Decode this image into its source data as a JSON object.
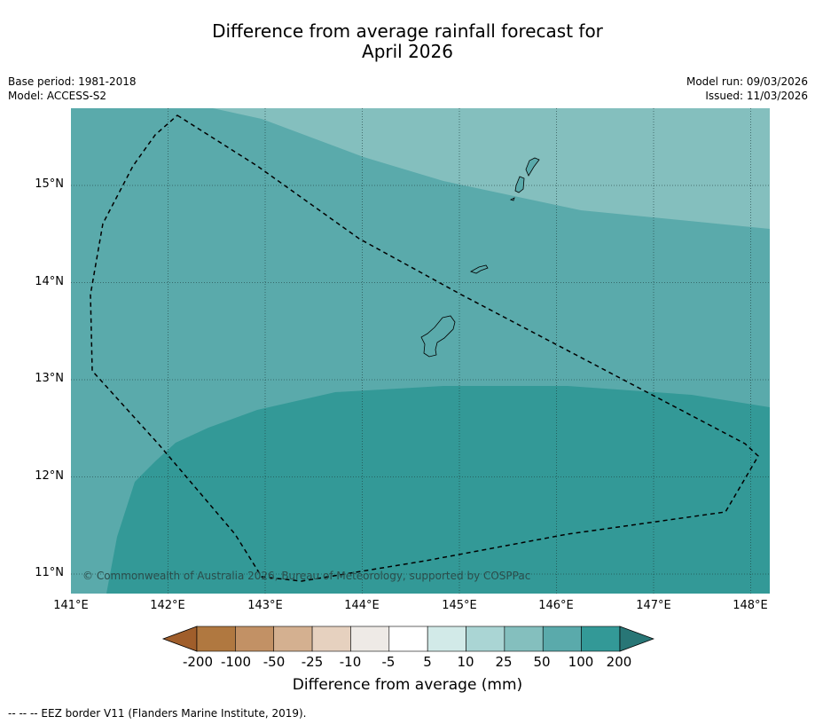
{
  "title": {
    "line1": "Difference from average rainfall forecast for",
    "line2": "April 2026"
  },
  "meta": {
    "base_period": "Base period: 1981-2018",
    "model": "Model: ACCESS-S2",
    "model_run": "Model run: 09/03/2026",
    "issued": "Issued: 11/03/2026"
  },
  "map": {
    "lat_labels": [
      "15°N",
      "14°N",
      "13°N",
      "12°N",
      "11°N"
    ],
    "lon_labels": [
      "141°E",
      "142°E",
      "143°E",
      "144°E",
      "145°E",
      "146°E",
      "147°E",
      "148°E"
    ],
    "copyright": "© Commonwealth of Australia 2026, Bureau of Meteorology, supported by COSPPac",
    "region_colors": {
      "band_25_50": "#84bfbe",
      "band_50_100": "#5aaaab",
      "band_100_200": "#339997"
    }
  },
  "colorbar": {
    "tick_labels": [
      "-200",
      "-100",
      "-50",
      "-25",
      "-10",
      "-5",
      "5",
      "10",
      "25",
      "50",
      "100",
      "200"
    ],
    "colors": [
      "#a05e2b",
      "#b07840",
      "#c29165",
      "#d4b090",
      "#e6d1bf",
      "#eeeae6",
      "#ffffff",
      "#d2eae8",
      "#aad5d4",
      "#84bfbe",
      "#5aaaab",
      "#339997",
      "#287676"
    ],
    "title": "Difference from average (mm)"
  },
  "legend": {
    "text": "--  --  -- EEZ border V11 (Flanders Marine Institute, 2019)."
  }
}
